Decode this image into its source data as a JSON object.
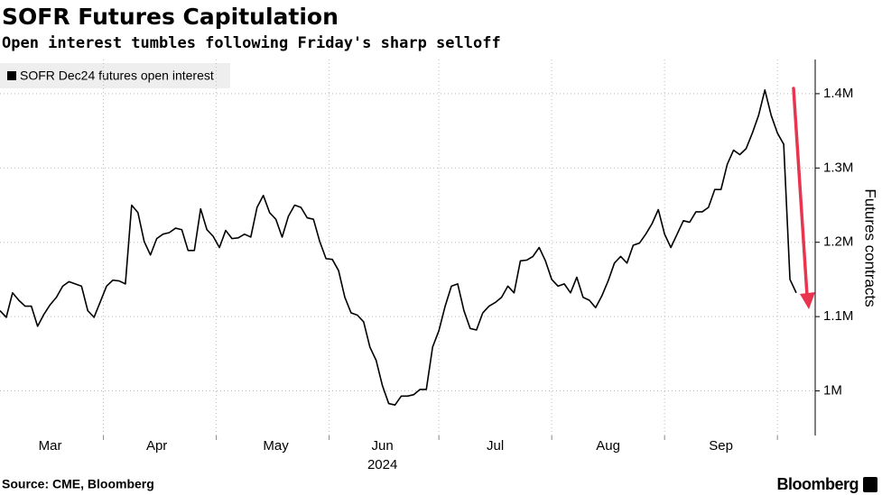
{
  "chart_data": {
    "type": "line",
    "title": "SOFR Futures Capitulation",
    "subtitle": "Open interest tumbles following Friday's sharp selloff",
    "ylabel": "Futures contracts",
    "xlabel": "2024",
    "source": "Source: CME, Bloomberg",
    "brand": "Bloomberg",
    "categories": [
      null,
      null,
      null,
      null,
      null,
      null,
      null,
      null,
      "Mar",
      null,
      null,
      null,
      null,
      null,
      null,
      null,
      null,
      null,
      null,
      null,
      null,
      null,
      null,
      null,
      null,
      "Apr",
      null,
      null,
      null,
      null,
      null,
      null,
      null,
      null,
      null,
      null,
      null,
      null,
      null,
      null,
      null,
      null,
      null,
      null,
      "May",
      null,
      null,
      null,
      null,
      null,
      null,
      null,
      null,
      null,
      null,
      null,
      null,
      null,
      null,
      null,
      null,
      "Jun",
      null,
      null,
      null,
      null,
      null,
      null,
      null,
      null,
      null,
      null,
      null,
      null,
      null,
      null,
      null,
      null,
      null,
      "Jul",
      null,
      null,
      null,
      null,
      null,
      null,
      null,
      null,
      null,
      null,
      null,
      null,
      null,
      null,
      null,
      null,
      null,
      "Aug",
      null,
      null,
      null,
      null,
      null,
      null,
      null,
      null,
      null,
      null,
      null,
      null,
      null,
      null,
      null,
      null,
      null,
      "Sep",
      null,
      null,
      null,
      null,
      null,
      null,
      null,
      null,
      null,
      null,
      null,
      null
    ],
    "series": [
      {
        "name": "SOFR Dec24 futures open interest",
        "color": "#000000",
        "values": [
          1108000,
          1099000,
          1132000,
          1122000,
          1114000,
          1114000,
          1087000,
          1103000,
          1116000,
          1126000,
          1141000,
          1147000,
          1144000,
          1141000,
          1108000,
          1099000,
          1120000,
          1141000,
          1149000,
          1148000,
          1144000,
          1250000,
          1240000,
          1201000,
          1183000,
          1205000,
          1211000,
          1213000,
          1219000,
          1217000,
          1189000,
          1189000,
          1245000,
          1217000,
          1208000,
          1193000,
          1216000,
          1205000,
          1206000,
          1211000,
          1207000,
          1247000,
          1263000,
          1240000,
          1231000,
          1207000,
          1235000,
          1250000,
          1247000,
          1233000,
          1231000,
          1201000,
          1178000,
          1177000,
          1162000,
          1126000,
          1105000,
          1102000,
          1093000,
          1059000,
          1041000,
          1007000,
          983000,
          981000,
          993000,
          993000,
          995000,
          1002000,
          1002000,
          1059000,
          1081000,
          1114000,
          1141000,
          1144000,
          1108000,
          1084000,
          1082000,
          1105000,
          1114000,
          1119000,
          1126000,
          1141000,
          1132000,
          1175000,
          1176000,
          1181000,
          1193000,
          1175000,
          1150000,
          1141000,
          1144000,
          1132000,
          1153000,
          1126000,
          1122000,
          1112000,
          1128000,
          1148000,
          1172000,
          1181000,
          1172000,
          1196000,
          1199000,
          1211000,
          1225000,
          1244000,
          1211000,
          1193000,
          1211000,
          1229000,
          1227000,
          1241000,
          1241000,
          1247000,
          1271000,
          1271000,
          1305000,
          1324000,
          1318000,
          1326000,
          1347000,
          1371000,
          1405000,
          1371000,
          1347000,
          1332000,
          1150000,
          1132000
        ]
      }
    ],
    "ylim": [
      940000,
      1446000
    ],
    "yticks": [
      {
        "value": 1000000,
        "label": "1M"
      },
      {
        "value": 1100000,
        "label": "1.1M"
      },
      {
        "value": 1200000,
        "label": "1.2M"
      },
      {
        "value": 1300000,
        "label": "1.3M"
      },
      {
        "value": 1400000,
        "label": "1.4M"
      }
    ],
    "grid": true
  }
}
